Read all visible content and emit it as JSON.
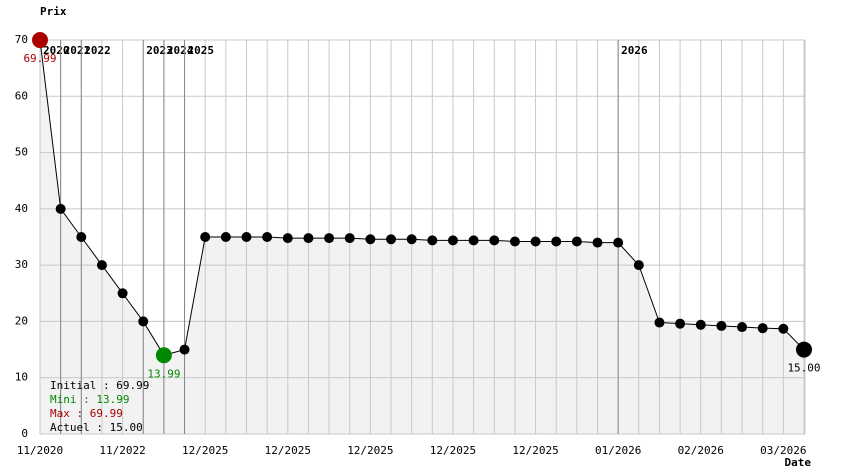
{
  "chart_data": {
    "type": "line",
    "y_label": "Prix",
    "x_label": "Date",
    "categories": [
      "11/2020",
      null,
      null,
      null,
      "11/2022",
      null,
      null,
      null,
      "12/2025",
      null,
      null,
      null,
      "12/2025",
      null,
      null,
      null,
      "12/2025",
      null,
      null,
      null,
      "12/2025",
      null,
      null,
      null,
      "12/2025",
      null,
      null,
      null,
      "01/2026",
      null,
      null,
      null,
      "02/2026",
      null,
      null,
      null,
      "03/2026",
      null
    ],
    "series": [
      {
        "name": "Prix",
        "color": "#000000",
        "values": [
          69.99,
          40,
          35,
          30,
          25,
          20,
          13.99,
          15,
          35,
          35,
          35,
          35,
          34.8,
          34.8,
          34.8,
          34.8,
          34.6,
          34.6,
          34.6,
          34.4,
          34.4,
          34.4,
          34.4,
          34.2,
          34.2,
          34.2,
          34.2,
          34,
          34,
          30,
          19.8,
          19.6,
          19.4,
          19.2,
          19,
          18.8,
          18.7,
          15
        ],
        "value_labels": [
          "69.99",
          null,
          null,
          null,
          null,
          null,
          "13.99",
          null,
          null,
          null,
          null,
          null,
          null,
          null,
          null,
          null,
          null,
          null,
          null,
          null,
          null,
          null,
          null,
          null,
          null,
          null,
          null,
          null,
          null,
          null,
          null,
          null,
          null,
          null,
          null,
          null,
          null,
          "15.00"
        ]
      }
    ],
    "max_color": "#aa0000",
    "min_color": "#008800",
    "ylim": [
      0,
      70
    ],
    "yticks": [
      0,
      10,
      20,
      30,
      40,
      50,
      60,
      70
    ],
    "grid": true,
    "year_markers": [
      {
        "label": "2020",
        "index": 0
      },
      {
        "label": "2021",
        "index": 1
      },
      {
        "label": "2022",
        "index": 2
      },
      {
        "label": "2023",
        "index": 5
      },
      {
        "label": "2024",
        "index": 6
      },
      {
        "label": "2025",
        "index": 7
      },
      {
        "label": "2026",
        "index": 28
      }
    ],
    "summary": [
      {
        "text": "Initial : 69.99",
        "color": "#000000"
      },
      {
        "text": "Mini : 13.99",
        "color": "#008800"
      },
      {
        "text": "Max : 69.99",
        "color": "#aa0000"
      },
      {
        "text": "Actuel : 15.00",
        "color": "#000000"
      }
    ]
  }
}
